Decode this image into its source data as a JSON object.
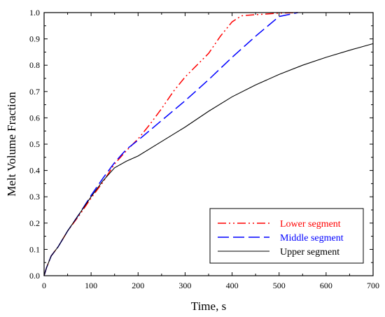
{
  "chart_data": {
    "type": "line",
    "title": "",
    "xlabel": "Time, s",
    "ylabel": "Melt Volume Fraction",
    "xlim": [
      0,
      700
    ],
    "ylim": [
      0,
      1.0
    ],
    "x_ticks": [
      0,
      100,
      200,
      300,
      400,
      500,
      600,
      700
    ],
    "y_ticks": [
      0.0,
      0.1,
      0.2,
      0.3,
      0.4,
      0.5,
      0.6,
      0.7,
      0.8,
      0.9,
      1.0
    ],
    "x_tick_labels": [
      "0",
      "100",
      "200",
      "300",
      "400",
      "500",
      "600",
      "700"
    ],
    "y_tick_labels": [
      "0.0",
      "0.1",
      "0.2",
      "0.3",
      "0.4",
      "0.5",
      "0.6",
      "0.7",
      "0.8",
      "0.9",
      "1.0"
    ],
    "grid": false,
    "legend_position": "bottom-right",
    "series": [
      {
        "name": "Lower segment",
        "color": "#ff0000",
        "dash": "dash-dot-dot",
        "points": [
          [
            0,
            0
          ],
          [
            5,
            0.03
          ],
          [
            15,
            0.075
          ],
          [
            30,
            0.11
          ],
          [
            50,
            0.17
          ],
          [
            75,
            0.23
          ],
          [
            100,
            0.295
          ],
          [
            125,
            0.355
          ],
          [
            150,
            0.425
          ],
          [
            175,
            0.475
          ],
          [
            200,
            0.52
          ],
          [
            225,
            0.575
          ],
          [
            250,
            0.635
          ],
          [
            275,
            0.7
          ],
          [
            300,
            0.755
          ],
          [
            325,
            0.8
          ],
          [
            350,
            0.845
          ],
          [
            375,
            0.91
          ],
          [
            400,
            0.965
          ],
          [
            420,
            0.988
          ],
          [
            450,
            0.992
          ],
          [
            500,
            0.998
          ],
          [
            540,
            1.0
          ]
        ]
      },
      {
        "name": "Middle segment",
        "color": "#0000ff",
        "dash": "long-dash",
        "points": [
          [
            0,
            0
          ],
          [
            5,
            0.03
          ],
          [
            15,
            0.075
          ],
          [
            30,
            0.11
          ],
          [
            50,
            0.17
          ],
          [
            75,
            0.235
          ],
          [
            100,
            0.305
          ],
          [
            125,
            0.37
          ],
          [
            150,
            0.43
          ],
          [
            175,
            0.48
          ],
          [
            200,
            0.515
          ],
          [
            250,
            0.59
          ],
          [
            300,
            0.665
          ],
          [
            350,
            0.745
          ],
          [
            400,
            0.83
          ],
          [
            450,
            0.91
          ],
          [
            500,
            0.985
          ],
          [
            540,
            1.0
          ]
        ]
      },
      {
        "name": "Upper segment",
        "color": "#000000",
        "dash": "solid",
        "points": [
          [
            0,
            0
          ],
          [
            5,
            0.03
          ],
          [
            15,
            0.075
          ],
          [
            30,
            0.11
          ],
          [
            50,
            0.17
          ],
          [
            75,
            0.235
          ],
          [
            100,
            0.3
          ],
          [
            125,
            0.36
          ],
          [
            150,
            0.41
          ],
          [
            175,
            0.435
          ],
          [
            200,
            0.455
          ],
          [
            250,
            0.51
          ],
          [
            300,
            0.565
          ],
          [
            350,
            0.625
          ],
          [
            400,
            0.68
          ],
          [
            450,
            0.725
          ],
          [
            500,
            0.765
          ],
          [
            550,
            0.8
          ],
          [
            600,
            0.83
          ],
          [
            650,
            0.857
          ],
          [
            700,
            0.882
          ]
        ]
      }
    ]
  }
}
